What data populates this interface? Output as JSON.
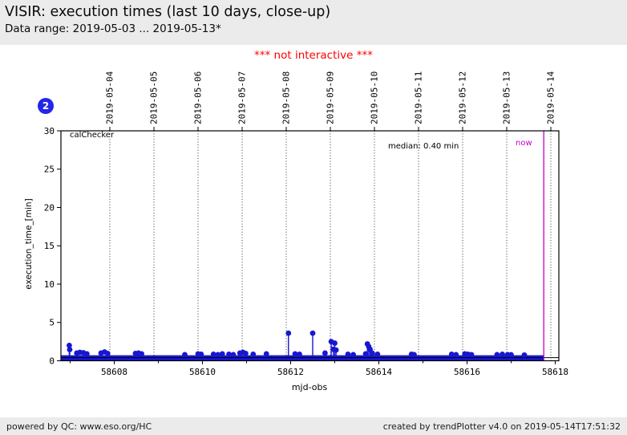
{
  "header": {
    "title": "VISIR: execution times (last 10 days, close-up)",
    "subtitle": "Data range: 2019-05-03 ... 2019-05-13*"
  },
  "note": "*** not interactive ***",
  "badge": "2",
  "footer": {
    "left": "powered by QC: www.eso.org/HC",
    "right": "created by trendPlotter v4.0 on 2019-05-14T17:51:32"
  },
  "chart_data": {
    "type": "scatter",
    "title": "VISIR: execution times (last 10 days, close-up)",
    "xlabel": "mjd-obs",
    "ylabel": "execution_time_[min]",
    "xlim": [
      58606.79,
      58618.08
    ],
    "ylim": [
      0,
      30
    ],
    "series_label": "calChecker",
    "grid": "vertical dotted lines at day boundaries",
    "y_ticks": [
      0,
      5,
      10,
      15,
      20,
      25,
      30
    ],
    "x_major_ticks": [
      58608,
      58610,
      58612,
      58614,
      58616,
      58618
    ],
    "x_minor_ticks": [
      58607,
      58609,
      58611,
      58613,
      58615,
      58617
    ],
    "date_gridlines": [
      {
        "mjd": 58607.9,
        "label": "2019-05-04"
      },
      {
        "mjd": 58608.9,
        "label": "2019-05-05"
      },
      {
        "mjd": 58609.9,
        "label": "2019-05-06"
      },
      {
        "mjd": 58610.9,
        "label": "2019-05-07"
      },
      {
        "mjd": 58611.9,
        "label": "2019-05-08"
      },
      {
        "mjd": 58612.9,
        "label": "2019-05-09"
      },
      {
        "mjd": 58613.9,
        "label": "2019-05-10"
      },
      {
        "mjd": 58614.9,
        "label": "2019-05-11"
      },
      {
        "mjd": 58615.9,
        "label": "2019-05-12"
      },
      {
        "mjd": 58616.9,
        "label": "2019-05-13"
      },
      {
        "mjd": 58617.9,
        "label": "2019-05-14"
      }
    ],
    "median": {
      "value": 0.4,
      "label": "median: 0.40 min"
    },
    "now": {
      "mjd": 58617.74,
      "label": "now"
    },
    "band": {
      "x_start": 58606.79,
      "x_end": 58617.74,
      "y_low": 0.02,
      "y_high": 0.72
    },
    "points": [
      [
        58606.98,
        2.0
      ],
      [
        58606.99,
        1.45
      ],
      [
        58607.15,
        1.0
      ],
      [
        58607.22,
        1.1
      ],
      [
        58607.3,
        1.05
      ],
      [
        58607.38,
        0.9
      ],
      [
        58607.7,
        1.0
      ],
      [
        58607.78,
        1.15
      ],
      [
        58607.85,
        0.95
      ],
      [
        58608.48,
        0.95
      ],
      [
        58608.55,
        1.0
      ],
      [
        58608.62,
        0.9
      ],
      [
        58609.6,
        0.8
      ],
      [
        58609.9,
        0.9
      ],
      [
        58609.97,
        0.85
      ],
      [
        58610.25,
        0.85
      ],
      [
        58610.35,
        0.8
      ],
      [
        58610.45,
        0.9
      ],
      [
        58610.6,
        0.85
      ],
      [
        58610.7,
        0.8
      ],
      [
        58610.85,
        1.0
      ],
      [
        58610.92,
        1.1
      ],
      [
        58610.98,
        0.95
      ],
      [
        58611.15,
        0.85
      ],
      [
        58611.45,
        0.9
      ],
      [
        58611.95,
        3.6
      ],
      [
        58612.1,
        0.9
      ],
      [
        58612.2,
        0.85
      ],
      [
        58612.5,
        3.6
      ],
      [
        58612.78,
        1.0
      ],
      [
        58612.92,
        2.5
      ],
      [
        58612.97,
        1.5
      ],
      [
        58613.0,
        2.3
      ],
      [
        58613.03,
        1.4
      ],
      [
        58613.3,
        0.85
      ],
      [
        58613.42,
        0.8
      ],
      [
        58613.7,
        0.9
      ],
      [
        58613.74,
        2.2
      ],
      [
        58613.77,
        1.85
      ],
      [
        58613.8,
        1.5
      ],
      [
        58613.85,
        1.0
      ],
      [
        58613.97,
        0.85
      ],
      [
        58614.74,
        0.85
      ],
      [
        58614.8,
        0.8
      ],
      [
        58615.65,
        0.85
      ],
      [
        58615.75,
        0.8
      ],
      [
        58615.95,
        0.9
      ],
      [
        58616.02,
        0.85
      ],
      [
        58616.1,
        0.8
      ],
      [
        58616.68,
        0.8
      ],
      [
        58616.8,
        0.85
      ],
      [
        58616.92,
        0.8
      ],
      [
        58617.0,
        0.78
      ],
      [
        58617.3,
        0.75
      ]
    ],
    "colors": {
      "data": "#1717d3",
      "now": "#c400c4",
      "note": "#fe0000",
      "badge": "#2525e8",
      "grid": "#000000",
      "page_bg": "#ebebeb",
      "figure_bg": "#ffffff"
    }
  }
}
